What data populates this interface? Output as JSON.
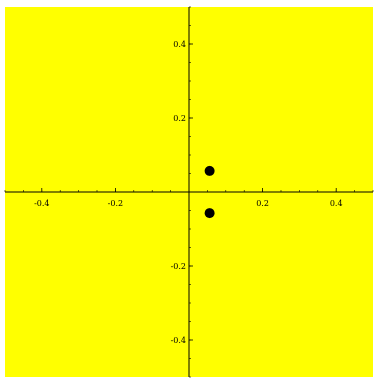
{
  "chart_data": {
    "type": "scatter",
    "title": "",
    "xlabel": "",
    "ylabel": "",
    "xlim": [
      -0.5,
      0.5
    ],
    "ylim": [
      -0.5,
      0.5
    ],
    "grid": false,
    "background": "#ffff00",
    "axis_color": "#000000",
    "point_color": "#000000",
    "x_ticks": [
      {
        "value": -0.4,
        "label": "-0.4"
      },
      {
        "value": -0.2,
        "label": "-0.2"
      },
      {
        "value": 0.2,
        "label": "0.2"
      },
      {
        "value": 0.4,
        "label": "0.4"
      }
    ],
    "y_ticks": [
      {
        "value": 0.4,
        "label": "0.4"
      },
      {
        "value": 0.2,
        "label": "0.2"
      },
      {
        "value": -0.2,
        "label": "-0.2"
      },
      {
        "value": -0.4,
        "label": "-0.4"
      }
    ],
    "series": [
      {
        "points": [
          {
            "x": 0.056,
            "y": 0.057
          },
          {
            "x": 0.056,
            "y": -0.057
          }
        ]
      }
    ]
  }
}
